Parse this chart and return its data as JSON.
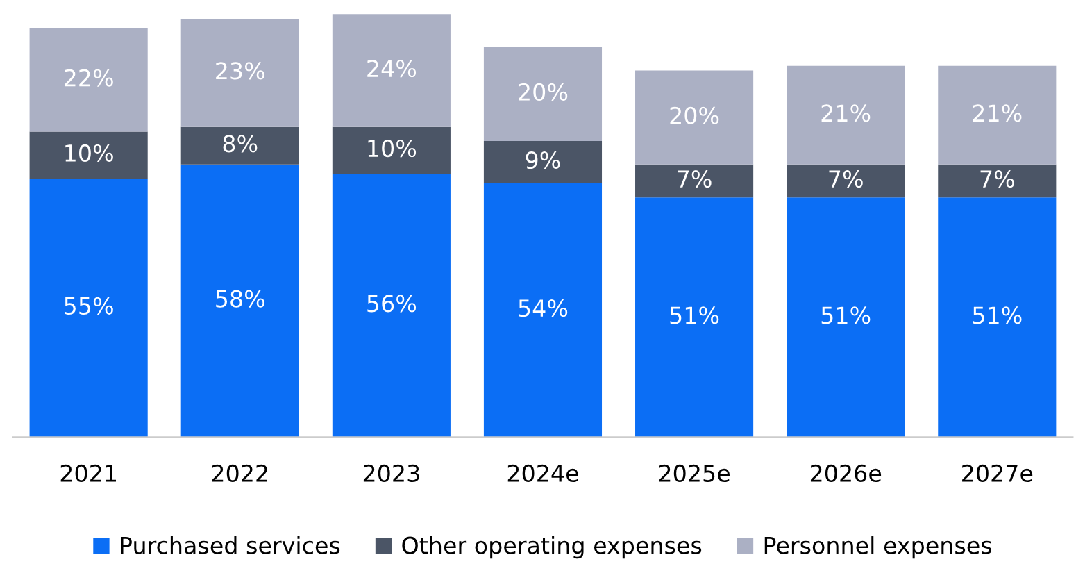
{
  "chart_data": {
    "type": "bar",
    "stacked": true,
    "relative": false,
    "legend": "bottom",
    "grid": false,
    "categories": [
      "2021",
      "2022",
      "2023",
      "2024e",
      "2025e",
      "2026e",
      "2027e"
    ],
    "series": [
      {
        "name": "Purchased services",
        "color": "#0b6ef5",
        "values": [
          55,
          58,
          56,
          54,
          51,
          51,
          51
        ],
        "value_labels": [
          "55%",
          "58%",
          "56%",
          "54%",
          "51%",
          "51%",
          "51%"
        ]
      },
      {
        "name": "Other operating expenses",
        "color": "#4b5566",
        "values": [
          10,
          8,
          10,
          9,
          7,
          7,
          7
        ],
        "value_labels": [
          "10%",
          "8%",
          "10%",
          "9%",
          "7%",
          "7%",
          "7%"
        ]
      },
      {
        "name": "Personnel expenses",
        "color": "#abb0c4",
        "values": [
          22,
          23,
          24,
          20,
          20,
          21,
          21
        ],
        "value_labels": [
          "22%",
          "23%",
          "24%",
          "20%",
          "20%",
          "21%",
          "21%"
        ]
      }
    ]
  }
}
